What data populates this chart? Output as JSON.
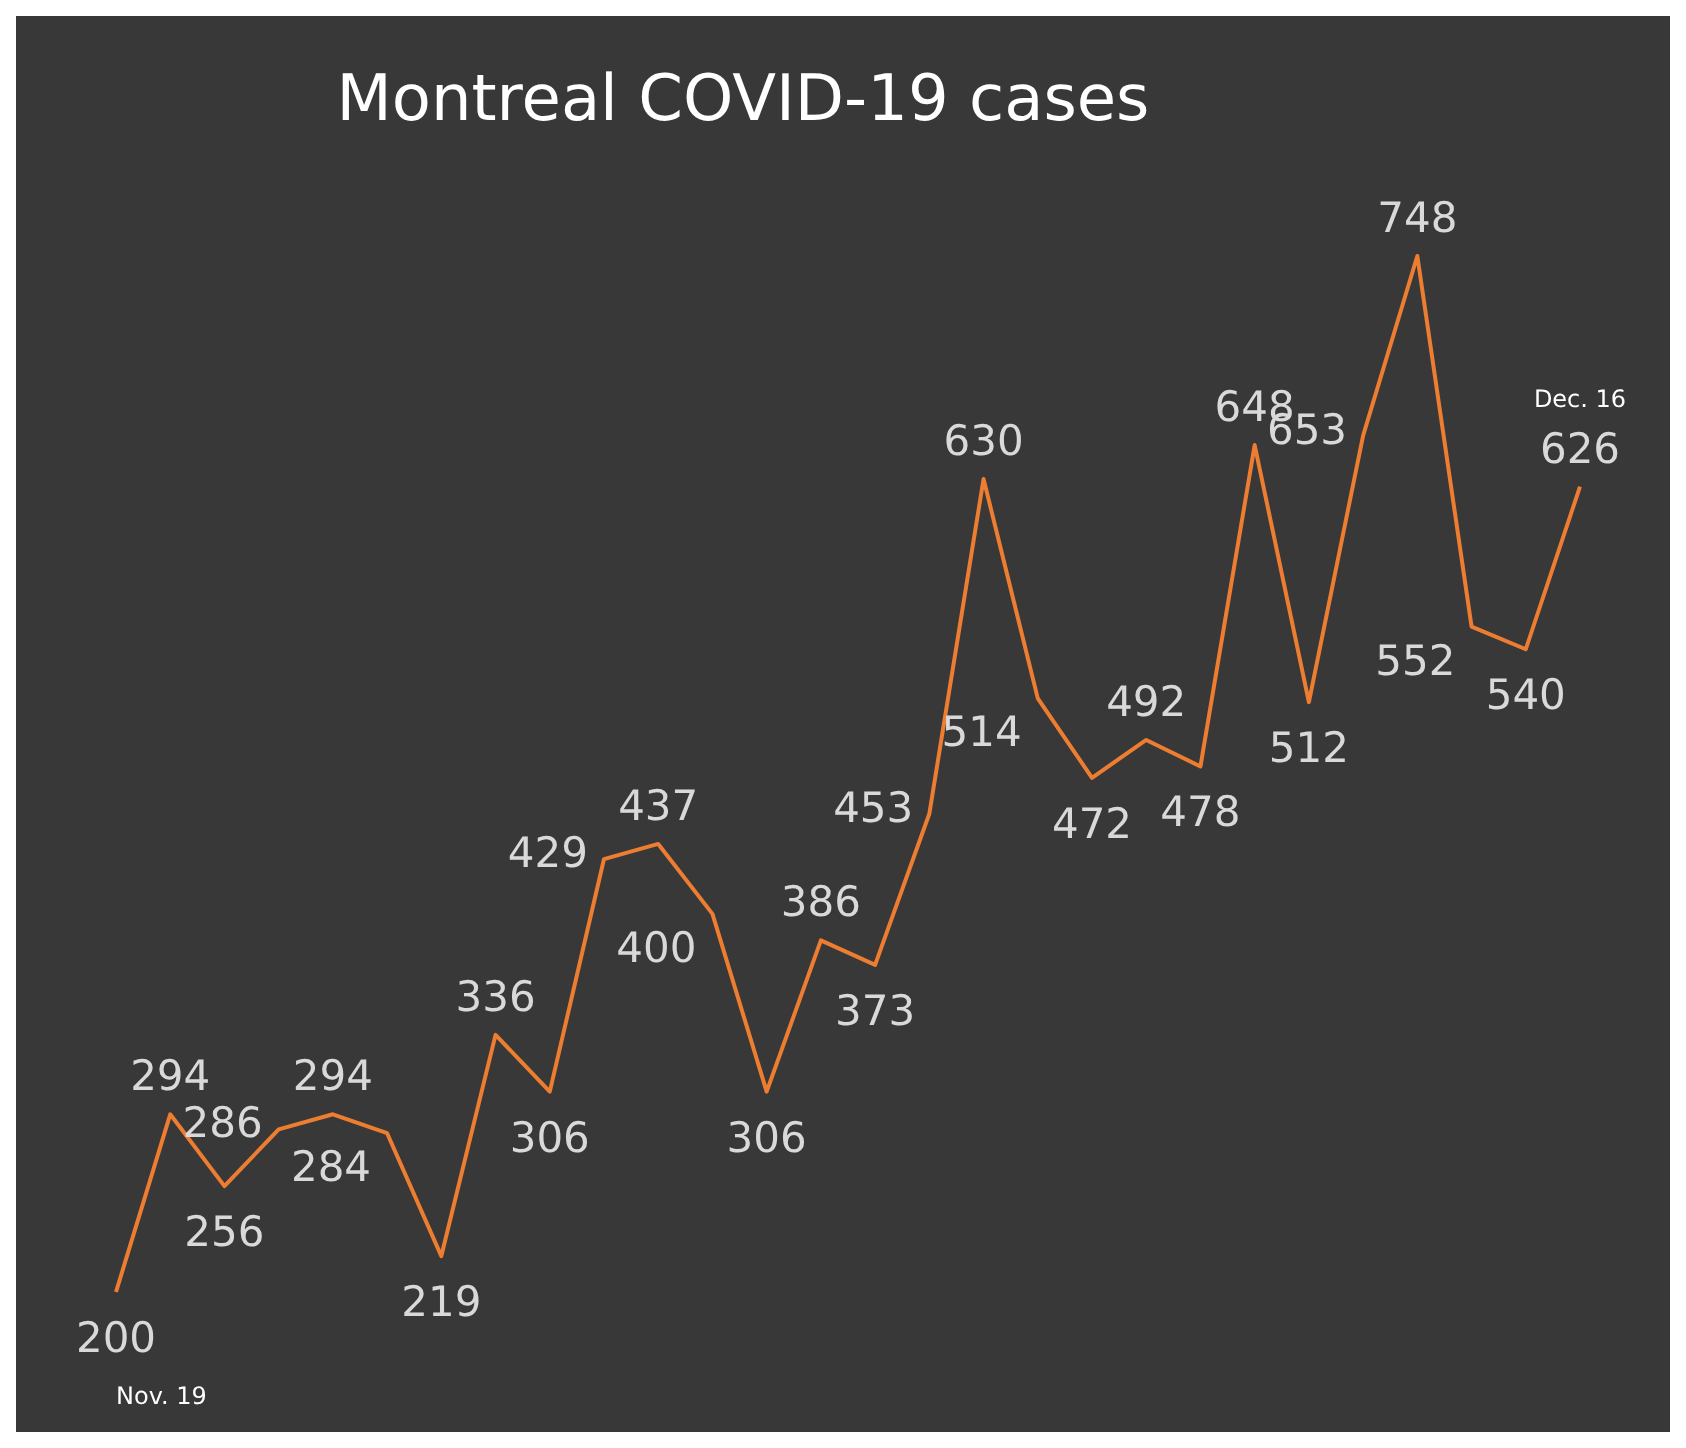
{
  "chart_data": {
    "type": "line",
    "title": "Montreal COVID-19 cases",
    "categories": [
      null,
      null,
      null,
      null,
      null,
      null,
      null,
      null,
      null,
      null,
      null,
      null,
      null,
      null,
      null,
      null,
      null,
      null,
      null,
      null,
      null,
      null,
      null,
      null,
      null,
      null,
      null,
      null
    ],
    "series": [
      {
        "color": "#ed7d31",
        "values": [
          200,
          294,
          256,
          286,
          294,
          284,
          219,
          336,
          306,
          429,
          437,
          400,
          306,
          386,
          373,
          453,
          630,
          514,
          472,
          492,
          478,
          648,
          512,
          653,
          748,
          552,
          540,
          626
        ]
      }
    ],
    "data_labels": true,
    "marker": "none",
    "line_style": "solid",
    "annotations": [
      "Nov. 19",
      "Dec. 16"
    ]
  }
}
